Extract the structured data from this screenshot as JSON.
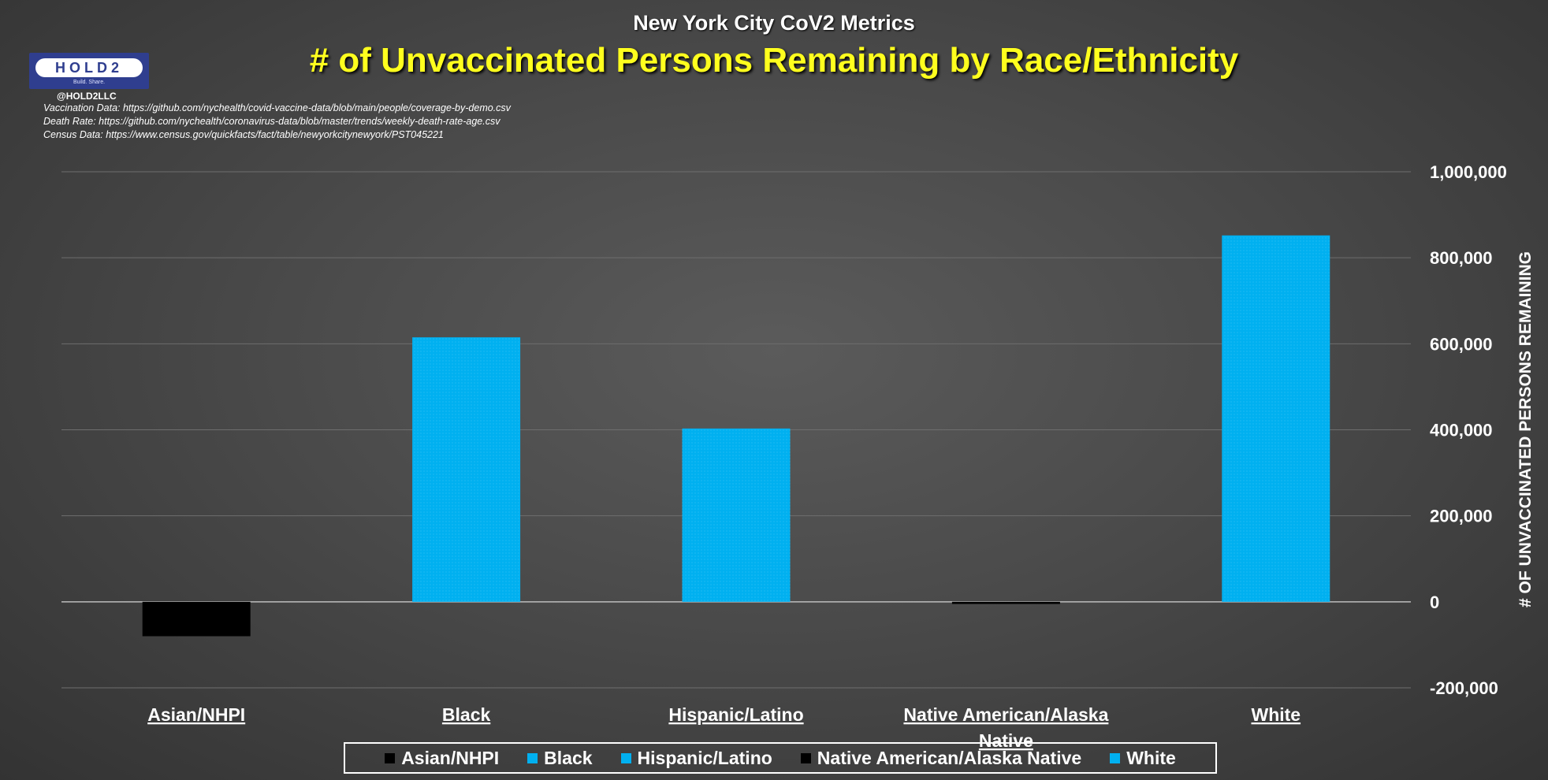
{
  "header": {
    "subtitle": "New York City CoV2 Metrics",
    "title": "# of Unvaccinated Persons Remaining by Race/Ethnicity",
    "logo_text": "HOLD2",
    "logo_tagline": "Build. Share.",
    "handle": "@HOLD2LLC",
    "sources": [
      "Vaccination Data: https://github.com/nychealth/covid-vaccine-data/blob/main/people/coverage-by-demo.csv",
      "Death Rate: https://github.com/nychealth/coronavirus-data/blob/master/trends/weekly-death-rate-age.csv",
      "Census Data: https://www.census.gov/quickfacts/fact/table/newyorkcitynewyork/PST045221"
    ]
  },
  "colors": {
    "positive": "#00b0f0",
    "negative": "#000000",
    "title": "#ffff1e",
    "grid": "#6e6e6e"
  },
  "chart_data": {
    "type": "bar",
    "title": "# of Unvaccinated Persons Remaining by Race/Ethnicity",
    "xlabel": "",
    "ylabel": "# OF UNVACCINATED PERSONS REMAINING",
    "categories": [
      "Asian/NHPI",
      "Black",
      "Hispanic/Latino",
      "Native American/Alaska Native",
      "White"
    ],
    "values": [
      -80000,
      615000,
      403000,
      -5000,
      852000
    ],
    "ylim": [
      -200000,
      1000000
    ],
    "yticks": [
      -200000,
      0,
      200000,
      400000,
      600000,
      800000,
      1000000
    ],
    "ytick_labels": [
      "-200,000",
      "0",
      "200,000",
      "400,000",
      "600,000",
      "800,000",
      "1,000,000"
    ],
    "y_axis_position": "right",
    "grid": true,
    "legend": {
      "position": "bottom",
      "entries": [
        "Asian/NHPI",
        "Black",
        "Hispanic/Latino",
        "Native American/Alaska Native",
        "White"
      ]
    }
  }
}
